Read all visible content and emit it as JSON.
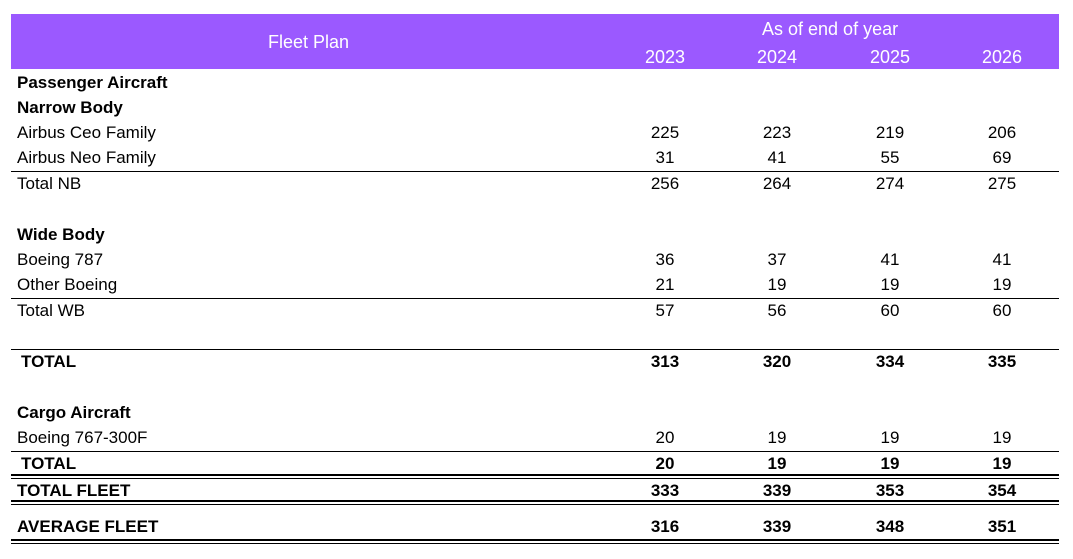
{
  "header": {
    "title": "Fleet Plan",
    "group_label": "As of end of year",
    "years": [
      "2023",
      "2024",
      "2025",
      "2026"
    ]
  },
  "rows": {
    "passenger_heading": "Passenger Aircraft",
    "narrow_body_heading": "Narrow Body",
    "airbus_ceo": {
      "label": "Airbus Ceo Family",
      "values": [
        "225",
        "223",
        "219",
        "206"
      ]
    },
    "airbus_neo": {
      "label": "Airbus Neo Family",
      "values": [
        "31",
        "41",
        "55",
        "69"
      ]
    },
    "total_nb": {
      "label": "Total NB",
      "values": [
        "256",
        "264",
        "274",
        "275"
      ]
    },
    "wide_body_heading": "Wide Body",
    "boeing_787": {
      "label": "Boeing 787",
      "values": [
        "36",
        "37",
        "41",
        "41"
      ]
    },
    "other_boeing": {
      "label": "Other Boeing",
      "values": [
        "21",
        "19",
        "19",
        "19"
      ]
    },
    "total_wb": {
      "label": "Total WB",
      "values": [
        "57",
        "56",
        "60",
        "60"
      ]
    },
    "passenger_total": {
      "label": "TOTAL",
      "values": [
        "313",
        "320",
        "334",
        "335"
      ]
    },
    "cargo_heading": "Cargo Aircraft",
    "boeing_767": {
      "label": "Boeing 767-300F",
      "values": [
        "20",
        "19",
        "19",
        "19"
      ]
    },
    "cargo_total": {
      "label": "TOTAL",
      "values": [
        "20",
        "19",
        "19",
        "19"
      ]
    },
    "total_fleet": {
      "label": "TOTAL FLEET",
      "values": [
        "333",
        "339",
        "353",
        "354"
      ]
    },
    "average_fleet": {
      "label": "AVERAGE FLEET",
      "values": [
        "316",
        "339",
        "348",
        "351"
      ]
    }
  },
  "colors": {
    "header_background": "#9b59ff",
    "header_text": "#ffffff"
  }
}
